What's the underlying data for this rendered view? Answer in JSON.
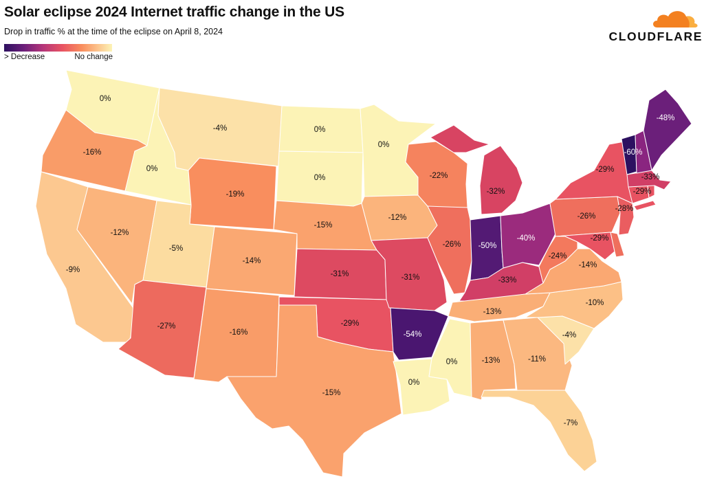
{
  "title": "Solar eclipse 2024 Internet traffic change in the US",
  "subtitle": "Drop in traffic % at the time of the eclipse on April 8, 2024",
  "legend": {
    "low_label": "> Decrease",
    "high_label": "No change",
    "colors": [
      "#2d1160",
      "#6b1f7a",
      "#b5367a",
      "#e85362",
      "#f98e5e",
      "#fcc890",
      "#fcf3b6"
    ]
  },
  "brand": {
    "name": "CLOUDFLARE",
    "icon": "cloud-icon",
    "color": "#f38020"
  },
  "chart_data": {
    "type": "choropleth",
    "value_unit": "%",
    "states": [
      {
        "state": "WA",
        "value": 0,
        "label": "0%",
        "color": "#fcf3b6"
      },
      {
        "state": "OR",
        "value": -16,
        "label": "-16%",
        "color": "#f99c68"
      },
      {
        "state": "CA",
        "value": -9,
        "label": "-9%",
        "color": "#fcc890"
      },
      {
        "state": "ID",
        "value": 0,
        "label": "0%",
        "color": "#fcf3b6"
      },
      {
        "state": "NV",
        "value": -12,
        "label": "-12%",
        "color": "#fbb47c"
      },
      {
        "state": "MT",
        "value": -4,
        "label": "-4%",
        "color": "#fce1a8"
      },
      {
        "state": "WY",
        "value": -19,
        "label": "-19%",
        "color": "#f98e5e"
      },
      {
        "state": "UT",
        "value": -5,
        "label": "-5%",
        "color": "#fcdca0"
      },
      {
        "state": "AZ",
        "value": -27,
        "label": "-27%",
        "color": "#ed6a5e"
      },
      {
        "state": "CO",
        "value": -14,
        "label": "-14%",
        "color": "#faa872"
      },
      {
        "state": "NM",
        "value": -16,
        "label": "-16%",
        "color": "#f99c68"
      },
      {
        "state": "ND",
        "value": 0,
        "label": "0%",
        "color": "#fcf3b6"
      },
      {
        "state": "SD",
        "value": 0,
        "label": "0%",
        "color": "#fcf3b6"
      },
      {
        "state": "NE",
        "value": -15,
        "label": "-15%",
        "color": "#faa26d"
      },
      {
        "state": "KS",
        "value": -31,
        "label": "-31%",
        "color": "#dd4a61"
      },
      {
        "state": "OK",
        "value": -29,
        "label": "-29%",
        "color": "#e85362"
      },
      {
        "state": "TX",
        "value": -15,
        "label": "-15%",
        "color": "#faa26d"
      },
      {
        "state": "MN",
        "value": 0,
        "label": "0%",
        "color": "#fcf3b6"
      },
      {
        "state": "IA",
        "value": -12,
        "label": "-12%",
        "color": "#fbb47c"
      },
      {
        "state": "MO",
        "value": -31,
        "label": "-31%",
        "color": "#dd4a61"
      },
      {
        "state": "AR",
        "value": -54,
        "label": "-54%",
        "color": "#4a1670"
      },
      {
        "state": "LA",
        "value": 0,
        "label": "0%",
        "color": "#fcf3b6"
      },
      {
        "state": "WI",
        "value": -22,
        "label": "-22%",
        "color": "#f5835e"
      },
      {
        "state": "IL",
        "value": -26,
        "label": "-26%",
        "color": "#ef6f5d"
      },
      {
        "state": "MS",
        "value": 0,
        "label": "0%",
        "color": "#fcf3b6"
      },
      {
        "state": "MI",
        "value": -32,
        "label": "-32%",
        "color": "#d84462"
      },
      {
        "state": "IN",
        "value": -50,
        "label": "-50%",
        "color": "#531a74"
      },
      {
        "state": "KY",
        "value": -33,
        "label": "-33%",
        "color": "#d13f66"
      },
      {
        "state": "TN",
        "value": -13,
        "label": "-13%",
        "color": "#faae76"
      },
      {
        "state": "AL",
        "value": -13,
        "label": "-13%",
        "color": "#faae76"
      },
      {
        "state": "OH",
        "value": -40,
        "label": "-40%",
        "color": "#9b2b7d"
      },
      {
        "state": "GA",
        "value": -11,
        "label": "-11%",
        "color": "#fbb880"
      },
      {
        "state": "FL",
        "value": -7,
        "label": "-7%",
        "color": "#fcd296"
      },
      {
        "state": "SC",
        "value": -4,
        "label": "-4%",
        "color": "#fce1a8"
      },
      {
        "state": "NC",
        "value": -10,
        "label": "-10%",
        "color": "#fcc086"
      },
      {
        "state": "VA",
        "value": -14,
        "label": "-14%",
        "color": "#faa872"
      },
      {
        "state": "WV",
        "value": -24,
        "label": "-24%",
        "color": "#f3795d"
      },
      {
        "state": "PA",
        "value": -26,
        "label": "-26%",
        "color": "#ef6f5d"
      },
      {
        "state": "MD",
        "value": -29,
        "label": "-29%",
        "color": "#e85362"
      },
      {
        "state": "DE",
        "value": -26,
        "label": "",
        "color": "#ef6f5d"
      },
      {
        "state": "NJ",
        "value": -28,
        "label": "-28%",
        "color": "#ea5d60"
      },
      {
        "state": "NY",
        "value": -29,
        "label": "-29%",
        "color": "#e85362"
      },
      {
        "state": "CT",
        "value": -29,
        "label": "-29%",
        "color": "#e85362"
      },
      {
        "state": "RI",
        "value": -29,
        "label": "",
        "color": "#e85362"
      },
      {
        "state": "MA",
        "value": -33,
        "label": "-33%",
        "color": "#d13f66"
      },
      {
        "state": "VT",
        "value": -60,
        "label": "-60%",
        "color": "#2d1160"
      },
      {
        "state": "NH",
        "value": -45,
        "label": "",
        "color": "#8a2580"
      },
      {
        "state": "ME",
        "value": -48,
        "label": "-48%",
        "color": "#6b1f7a"
      }
    ]
  }
}
